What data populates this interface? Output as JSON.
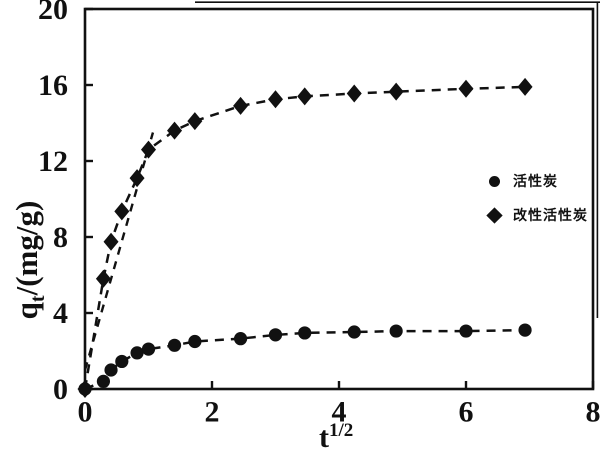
{
  "chart_data": {
    "type": "scatter",
    "title": "",
    "xlabel": "t^(1/2)",
    "ylabel": "qt/(mg/g)",
    "xlim": [
      0,
      8
    ],
    "ylim": [
      0,
      20
    ],
    "x_ticks": [
      0,
      2,
      4,
      6,
      8
    ],
    "y_ticks": [
      0,
      4,
      8,
      12,
      16,
      20
    ],
    "grid": false,
    "x": [
      0,
      0.29,
      0.41,
      0.58,
      0.82,
      1.0,
      1.41,
      1.73,
      2.45,
      3.0,
      3.46,
      4.24,
      4.9,
      6.0,
      6.93
    ],
    "series": [
      {
        "name": "活性炭",
        "marker": "circle",
        "linestyle": "dashed",
        "color": "#111111",
        "values": [
          0,
          0.4,
          1.0,
          1.45,
          1.9,
          2.1,
          2.3,
          2.5,
          2.65,
          2.85,
          2.95,
          3.0,
          3.05,
          3.05,
          3.1
        ]
      },
      {
        "name": "改性活性炭",
        "marker": "diamond",
        "linestyle": "dashed",
        "color": "#111111",
        "values": [
          0,
          5.8,
          7.75,
          9.35,
          11.1,
          12.6,
          13.6,
          14.1,
          14.9,
          15.25,
          15.4,
          15.55,
          15.65,
          15.8,
          15.9
        ]
      }
    ],
    "fit_line": {
      "x1": 0,
      "y1": 1.0,
      "x2": 1.07,
      "y2": 13.5,
      "style": "dashed",
      "comment": "steep initial-stage linear fit through early diamond points"
    },
    "legend": {
      "position": "middle-right",
      "entries": [
        "活性炭",
        "改性活性炭"
      ]
    },
    "colors": {
      "foreground": "#111111",
      "background": "#ffffff"
    }
  },
  "labels": {
    "ylabel_base": "q",
    "ylabel_sub": "t",
    "ylabel_rest": "/(mg/g)",
    "xlabel_base": "t",
    "xlabel_sup": "1/2"
  }
}
